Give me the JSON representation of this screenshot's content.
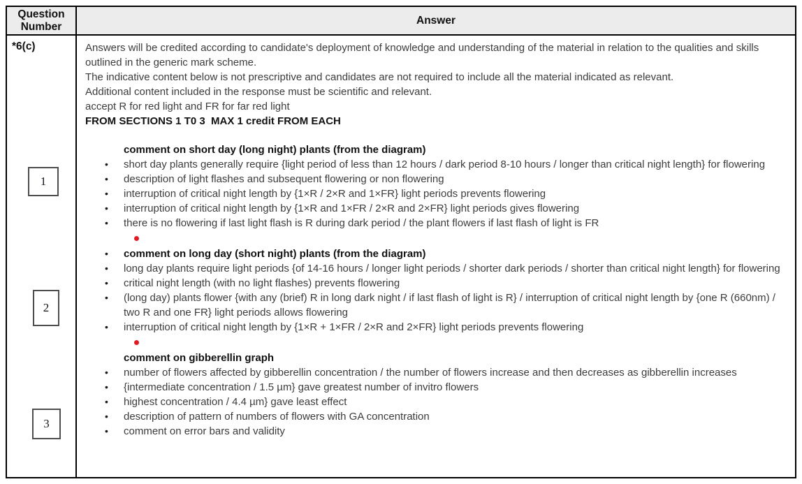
{
  "table": {
    "header": {
      "question_col": "Question Number",
      "answer_col": "Answer"
    },
    "question_number": "*6(c)",
    "intro_lines": [
      {
        "text": "Answers will be credited according to candidate's deployment of knowledge and understanding of the material in relation to the qualities and skills outlined in the generic mark scheme.",
        "bold": false
      },
      {
        "text": "The indicative content below is not prescriptive and candidates are not required to include all the material indicated as relevant.",
        "bold": false
      },
      {
        "text": "Additional content included in the response must be scientific and relevant.",
        "bold": false
      },
      {
        "text": "accept R for red light and FR for far red light",
        "bold": false
      },
      {
        "text": "FROM SECTIONS 1 T0 3  MAX 1 credit FROM EACH",
        "bold": true
      }
    ],
    "sections": [
      {
        "marker_box": "1",
        "red_dot_before": false,
        "heading": "comment on short day (long night) plants (from the diagram)",
        "heading_bullet": false,
        "bullets": [
          "short day plants generally require {light period of less than 12 hours / dark period 8-10 hours / longer than critical night length} for flowering",
          "description of light flashes and subsequent flowering or non flowering",
          "interruption of critical night length by {1×R / 2×R and 1×FR} light periods prevents flowering",
          "interruption of critical night length by {1×R and 1×FR / 2×R and 2×FR} light periods gives flowering",
          "there is no flowering if last light flash is R during dark period / the plant flowers if last flash of light is FR"
        ]
      },
      {
        "marker_box": "2",
        "red_dot_before": true,
        "heading": "comment on long day (short night) plants (from the diagram)",
        "heading_bullet": true,
        "bullets": [
          "long day plants require light periods {of 14-16 hours / longer light periods / shorter dark periods / shorter than critical night length} for flowering",
          "critical night length (with no light flashes) prevents flowering",
          "(long day) plants flower {with any (brief) R in long dark night / if last flash of light is R} / interruption of critical night length by {one R (660nm) / two R and one FR} light periods allows flowering",
          "interruption of critical night length by {1×R + 1×FR / 2×R and 2×FR} light periods prevents flowering"
        ]
      },
      {
        "marker_box": "3",
        "red_dot_before": true,
        "heading": "comment on gibberellin graph",
        "heading_bullet": false,
        "bullets": [
          "number of flowers affected by gibberellin concentration / the number of flowers increase and then decreases as gibberellin increases",
          "{intermediate concentration / 1.5 µm} gave greatest number of invitro flowers",
          "highest concentration / 4.4 µm} gave least effect",
          "description of pattern of numbers of flowers with GA concentration",
          "comment on error bars and validity"
        ]
      }
    ],
    "colors": {
      "header_bg": "#ececec",
      "border": "#000000",
      "body_text": "#3c3c3c",
      "red_dot": "#e01b24"
    }
  }
}
